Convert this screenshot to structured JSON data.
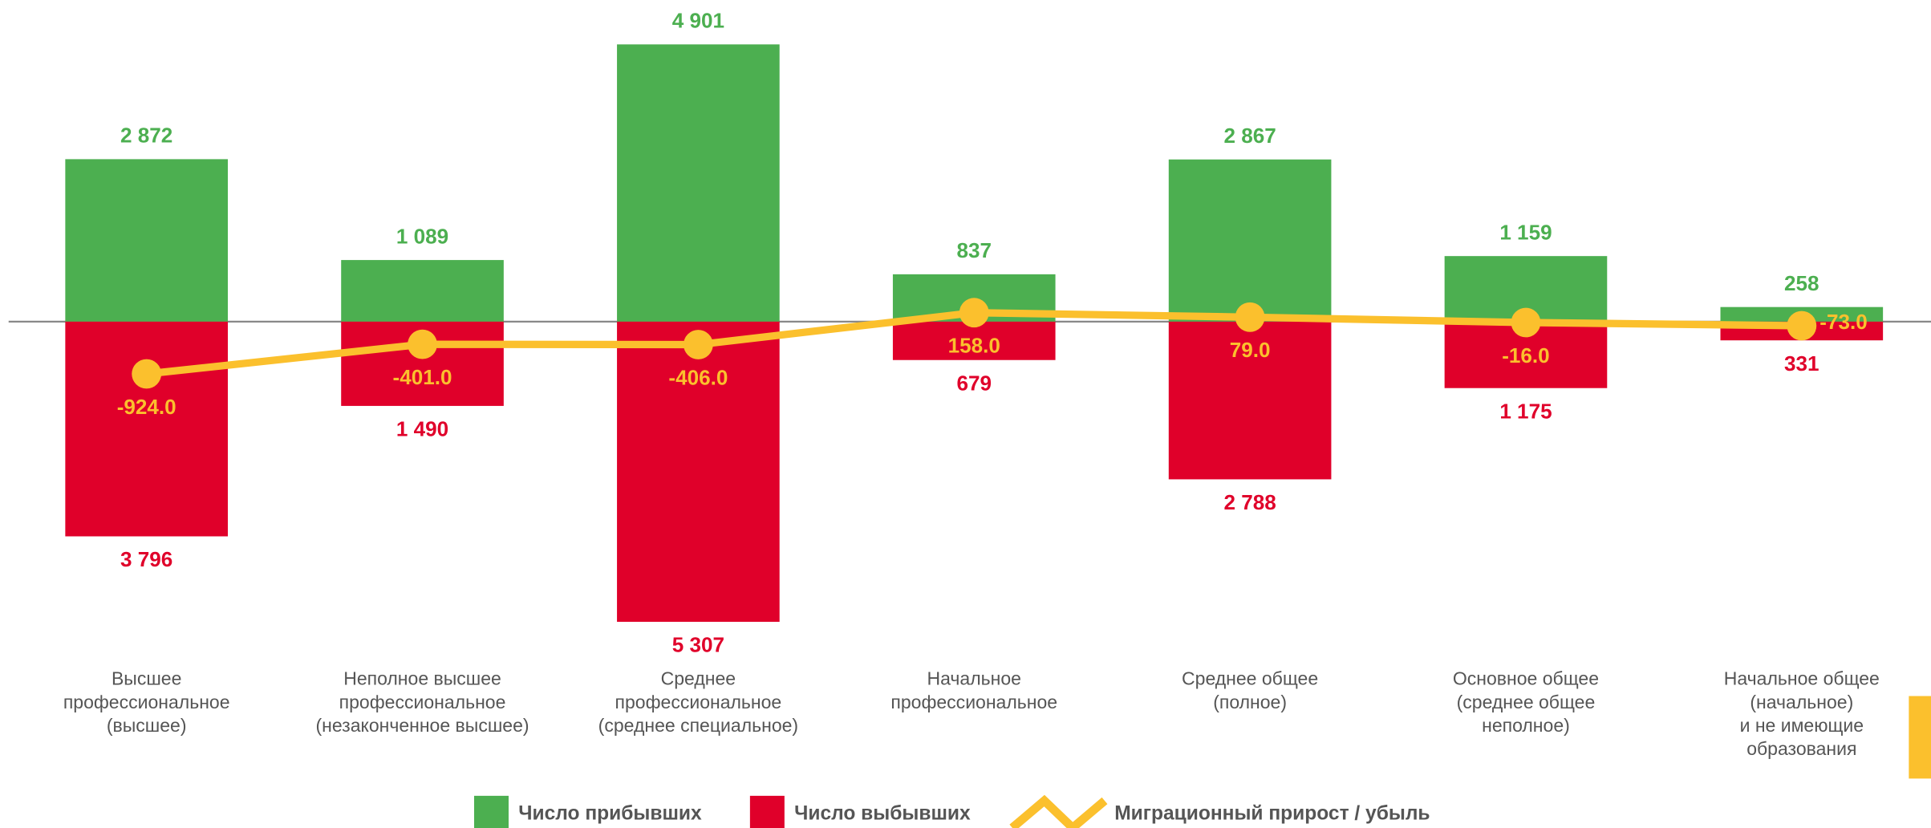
{
  "chart_data": {
    "type": "bar",
    "categories": [
      [
        "Высшее",
        "профессиональное",
        "(высшее)"
      ],
      [
        "Неполное высшее",
        "профессиональное",
        "(незаконченное высшее)"
      ],
      [
        "Среднее",
        "профессиональное",
        "(среднее специальное)"
      ],
      [
        "Начальное",
        "профессиональное"
      ],
      [
        "Среднее общее",
        "(полное)"
      ],
      [
        "Основное общее",
        "(среднее общее",
        "неполное)"
      ],
      [
        "Начальное общее",
        "(начальное)",
        "и не имеющие",
        "образования"
      ]
    ],
    "series": [
      {
        "name": "Число прибывших",
        "color": "#4caf50",
        "type": "bar",
        "orientation": "up",
        "values": [
          2872,
          1089,
          4901,
          837,
          2867,
          1159,
          258
        ],
        "value_labels": [
          "2 872",
          "1 089",
          "4 901",
          "837",
          "2 867",
          "1 159",
          "258"
        ]
      },
      {
        "name": "Число выбывших",
        "color": "#e0002a",
        "type": "bar",
        "orientation": "down",
        "values": [
          3796,
          1490,
          5307,
          679,
          2788,
          1175,
          331
        ],
        "value_labels": [
          "3 796",
          "1 490",
          "5 307",
          "679",
          "2 788",
          "1 175",
          "331"
        ]
      },
      {
        "name": "Миграционный прирост / убыль",
        "color": "#fbc02d",
        "type": "line",
        "values": [
          -924,
          -401,
          -406,
          158,
          79,
          -16,
          -73
        ],
        "value_labels": [
          "-924.0",
          "-401.0",
          "-406.0",
          "158.0",
          "79.0",
          "-16.0",
          "-73.0"
        ]
      }
    ],
    "ylim": [
      -5500,
      5500
    ]
  }
}
